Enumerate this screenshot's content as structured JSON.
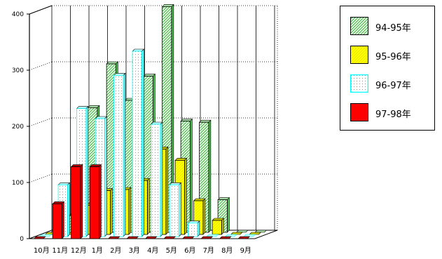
{
  "chart_data": {
    "type": "bar",
    "categories": [
      "10月",
      "11月",
      "12月",
      "1月",
      "2月",
      "3月",
      "4月",
      "5月",
      "6月",
      "7月",
      "8月",
      "9月"
    ],
    "series": [
      {
        "name": "94-95年",
        "values": [
          0,
          30,
          222,
          300,
          235,
          278,
          402,
          198,
          196,
          58,
          0,
          0
        ],
        "color": "#22aa22"
      },
      {
        "name": "95-96年",
        "values": [
          0,
          0,
          52,
          78,
          80,
          96,
          152,
          132,
          60,
          25,
          0,
          0
        ],
        "color": "#ffff00"
      },
      {
        "name": "96-97年",
        "values": [
          0,
          92,
          228,
          210,
          287,
          330,
          200,
          92,
          24,
          0,
          0,
          0
        ],
        "color": "#00ffff"
      },
      {
        "name": "97-98年",
        "values": [
          0,
          62,
          128,
          128,
          0,
          0,
          0,
          0,
          0,
          0,
          0,
          0
        ],
        "color": "#ff0000"
      }
    ],
    "yticks": [
      0,
      100,
      200,
      300,
      400
    ],
    "ylim": [
      0,
      400
    ],
    "grid": true,
    "legend_position": "top-right"
  }
}
